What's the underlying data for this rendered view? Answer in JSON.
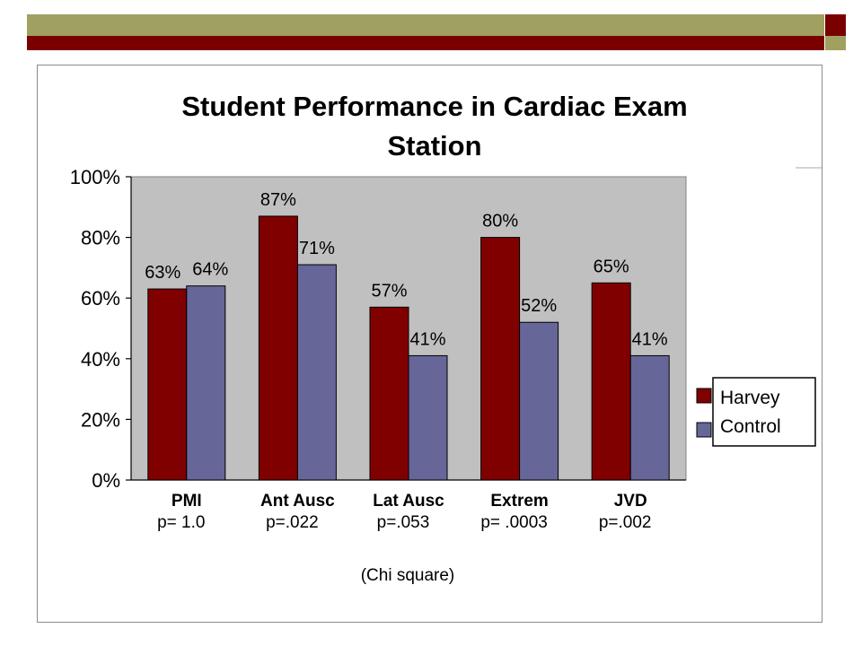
{
  "colors": {
    "harvey": "#800000",
    "control": "#666699",
    "plot_bg": "#c0c0c0",
    "deco_olive": "#a0a060",
    "deco_maroon": "#7a0000"
  },
  "chart_data": {
    "type": "bar",
    "title_lines": [
      "Student Performance in Cardiac Exam",
      "Station"
    ],
    "categories": [
      "PMI",
      "Ant Ausc",
      "Lat Ausc",
      "Extrem",
      "JVD"
    ],
    "p_values": [
      "p= 1.0",
      "p=.022",
      "p=.053",
      "p= .0003",
      "p=.002"
    ],
    "series": [
      {
        "name": "Harvey",
        "values": [
          63,
          87,
          57,
          80,
          65
        ],
        "labels": [
          "63%",
          "87%",
          "57%",
          "80%",
          "65%"
        ]
      },
      {
        "name": "Control",
        "values": [
          64,
          71,
          41,
          52,
          41
        ],
        "labels": [
          "64%",
          "71%",
          "41%",
          "52%",
          "41%"
        ]
      }
    ],
    "ylim": [
      0,
      100
    ],
    "yticks": [
      "0%",
      "20%",
      "40%",
      "60%",
      "80%",
      "100%"
    ],
    "note": "(Chi square)",
    "legend_position": "right",
    "grid": false
  }
}
